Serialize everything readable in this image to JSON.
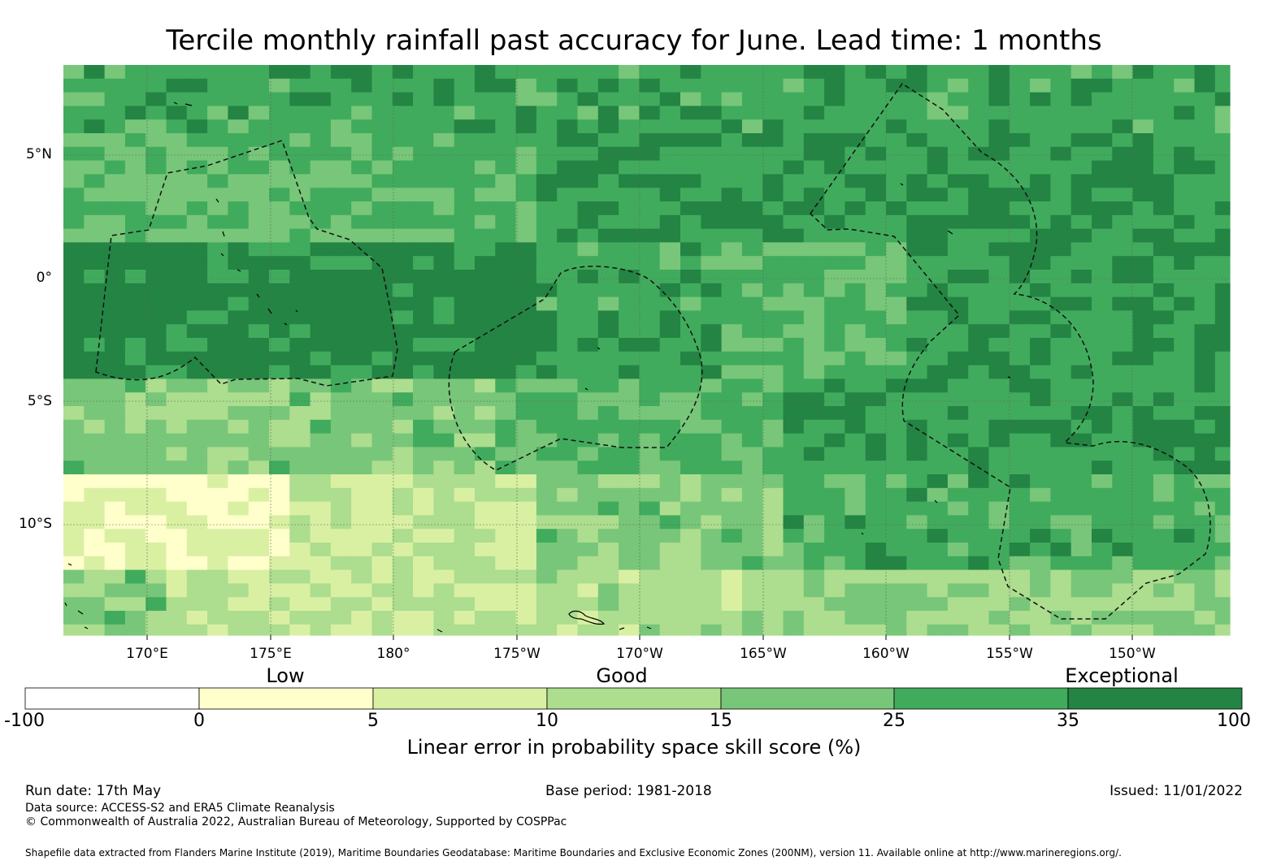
{
  "title": "Tercile monthly rainfall past accuracy for June. Lead time: 1 months",
  "map": {
    "lat_labels": [
      "5°N",
      "0°",
      "5°S",
      "10°S"
    ],
    "lon_labels": [
      "170°E",
      "175°E",
      "180°",
      "175°W",
      "170°W",
      "165°W",
      "160°W",
      "155°W",
      "150°W"
    ]
  },
  "colorbar": {
    "category_labels": [
      "Low",
      "Good",
      "Exceptional"
    ],
    "tick_labels": [
      "-100",
      "0",
      "5",
      "10",
      "15",
      "25",
      "35",
      "100"
    ],
    "colors": [
      "#ffffff",
      "#ffffcc",
      "#d9f0a3",
      "#addd8e",
      "#78c679",
      "#41ab5d",
      "#238443"
    ],
    "label": "Linear error in probability space skill score (%)"
  },
  "footer": {
    "run_date": "Run date: 17th May",
    "base_period": "Base period: 1981-2018",
    "issued": "Issued: 11/01/2022",
    "data_source": "Data source: ACCESS-S2 and ERA5 Climate Reanalysis",
    "copyright": "© Commonwealth of Australia 2022, Australian Bureau of Meteorology, Supported by COSPPac",
    "shapefile": "Shapefile data extracted from Flanders Marine Institute (2019), Maritime Boundaries Geodatabase: Maritime Boundaries and Exclusive Economic Zones (200NM), version 11. Available online at http://www.marineregions.org/."
  }
}
